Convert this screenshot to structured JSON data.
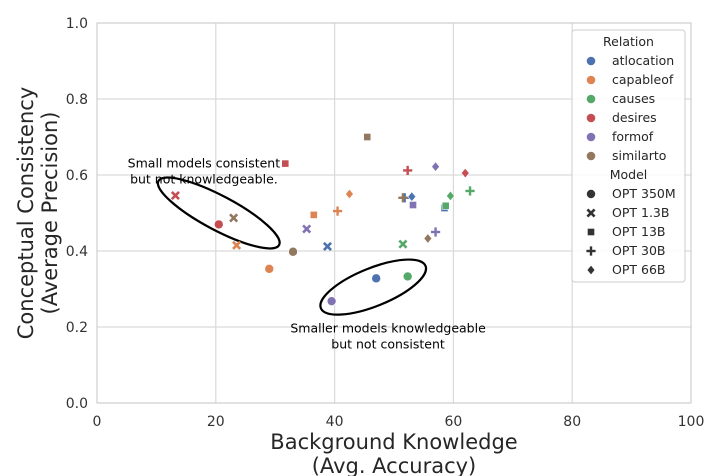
{
  "chart_data": {
    "type": "scatter",
    "xlabel": [
      "Background Knowledge",
      "(Avg. Accuracy)"
    ],
    "ylabel": [
      "Conceptual Consistency",
      "(Average Precision)"
    ],
    "xlim": [
      0,
      100
    ],
    "ylim": [
      0.0,
      1.0
    ],
    "xticks": [
      "0",
      "20",
      "40",
      "60",
      "80",
      "100"
    ],
    "yticks": [
      "0.0",
      "0.2",
      "0.4",
      "0.6",
      "0.8",
      "1.0"
    ],
    "grid": true,
    "legend": {
      "placement": "top-right",
      "hue_title": "Relation",
      "relations": [
        {
          "name": "atlocation",
          "color": "#4c72b0"
        },
        {
          "name": "capableof",
          "color": "#dd8452"
        },
        {
          "name": "causes",
          "color": "#55a868"
        },
        {
          "name": "desires",
          "color": "#c44e52"
        },
        {
          "name": "formof",
          "color": "#8172b3"
        },
        {
          "name": "similarto",
          "color": "#937860"
        }
      ],
      "style_title": "Model",
      "models": [
        {
          "name": "OPT 350M",
          "marker": "circle"
        },
        {
          "name": "OPT 1.3B",
          "marker": "x"
        },
        {
          "name": "OPT 13B",
          "marker": "square"
        },
        {
          "name": "OPT 30B",
          "marker": "plus"
        },
        {
          "name": "OPT 66B",
          "marker": "diamond"
        }
      ]
    },
    "points": [
      {
        "relation": "atlocation",
        "model": "OPT 350M",
        "x": 47.0,
        "y": 0.328
      },
      {
        "relation": "capableof",
        "model": "OPT 350M",
        "x": 29.0,
        "y": 0.353
      },
      {
        "relation": "causes",
        "model": "OPT 350M",
        "x": 52.3,
        "y": 0.333
      },
      {
        "relation": "desires",
        "model": "OPT 350M",
        "x": 20.5,
        "y": 0.47
      },
      {
        "relation": "formof",
        "model": "OPT 350M",
        "x": 39.5,
        "y": 0.268
      },
      {
        "relation": "similarto",
        "model": "OPT 350M",
        "x": 33.0,
        "y": 0.398
      },
      {
        "relation": "atlocation",
        "model": "OPT 1.3B",
        "x": 38.8,
        "y": 0.412
      },
      {
        "relation": "capableof",
        "model": "OPT 1.3B",
        "x": 23.5,
        "y": 0.415
      },
      {
        "relation": "causes",
        "model": "OPT 1.3B",
        "x": 51.5,
        "y": 0.418
      },
      {
        "relation": "desires",
        "model": "OPT 1.3B",
        "x": 13.2,
        "y": 0.546
      },
      {
        "relation": "formof",
        "model": "OPT 1.3B",
        "x": 35.3,
        "y": 0.458
      },
      {
        "relation": "similarto",
        "model": "OPT 1.3B",
        "x": 23.0,
        "y": 0.487
      },
      {
        "relation": "atlocation",
        "model": "OPT 13B",
        "x": 58.5,
        "y": 0.513
      },
      {
        "relation": "capableof",
        "model": "OPT 13B",
        "x": 36.5,
        "y": 0.495
      },
      {
        "relation": "causes",
        "model": "OPT 13B",
        "x": 58.7,
        "y": 0.519
      },
      {
        "relation": "desires",
        "model": "OPT 13B",
        "x": 31.7,
        "y": 0.63
      },
      {
        "relation": "formof",
        "model": "OPT 13B",
        "x": 53.2,
        "y": 0.521
      },
      {
        "relation": "similarto",
        "model": "OPT 13B",
        "x": 45.5,
        "y": 0.7
      },
      {
        "relation": "atlocation",
        "model": "OPT 30B",
        "x": 51.8,
        "y": 0.54
      },
      {
        "relation": "capableof",
        "model": "OPT 30B",
        "x": 40.5,
        "y": 0.505
      },
      {
        "relation": "causes",
        "model": "OPT 30B",
        "x": 62.8,
        "y": 0.558
      },
      {
        "relation": "desires",
        "model": "OPT 30B",
        "x": 52.3,
        "y": 0.612
      },
      {
        "relation": "formof",
        "model": "OPT 30B",
        "x": 57.0,
        "y": 0.45
      },
      {
        "relation": "similarto",
        "model": "OPT 30B",
        "x": 51.5,
        "y": 0.54
      },
      {
        "relation": "atlocation",
        "model": "OPT 66B",
        "x": 53.0,
        "y": 0.543
      },
      {
        "relation": "capableof",
        "model": "OPT 66B",
        "x": 42.5,
        "y": 0.55
      },
      {
        "relation": "causes",
        "model": "OPT 66B",
        "x": 59.5,
        "y": 0.545
      },
      {
        "relation": "desires",
        "model": "OPT 66B",
        "x": 62.0,
        "y": 0.605
      },
      {
        "relation": "formof",
        "model": "OPT 66B",
        "x": 57.0,
        "y": 0.622
      },
      {
        "relation": "similarto",
        "model": "OPT 66B",
        "x": 55.7,
        "y": 0.433
      }
    ],
    "annotations": [
      {
        "text": [
          "Small models consistent",
          "but not knowledgeable."
        ],
        "text_anchor_data": [
          18,
          0.62
        ],
        "ellipse": {
          "center": [
            20.5,
            0.5
          ],
          "rx_data": 11.5,
          "ry_data": 0.045,
          "rotation_deg": 28
        }
      },
      {
        "text": [
          "Smaller models knowledgeable",
          "but not consistent"
        ],
        "text_anchor_data": [
          49,
          0.185
        ],
        "ellipse": {
          "center": [
            46.5,
            0.305
          ],
          "rx_data": 9.5,
          "ry_data": 0.05,
          "rotation_deg": -22
        }
      }
    ]
  }
}
